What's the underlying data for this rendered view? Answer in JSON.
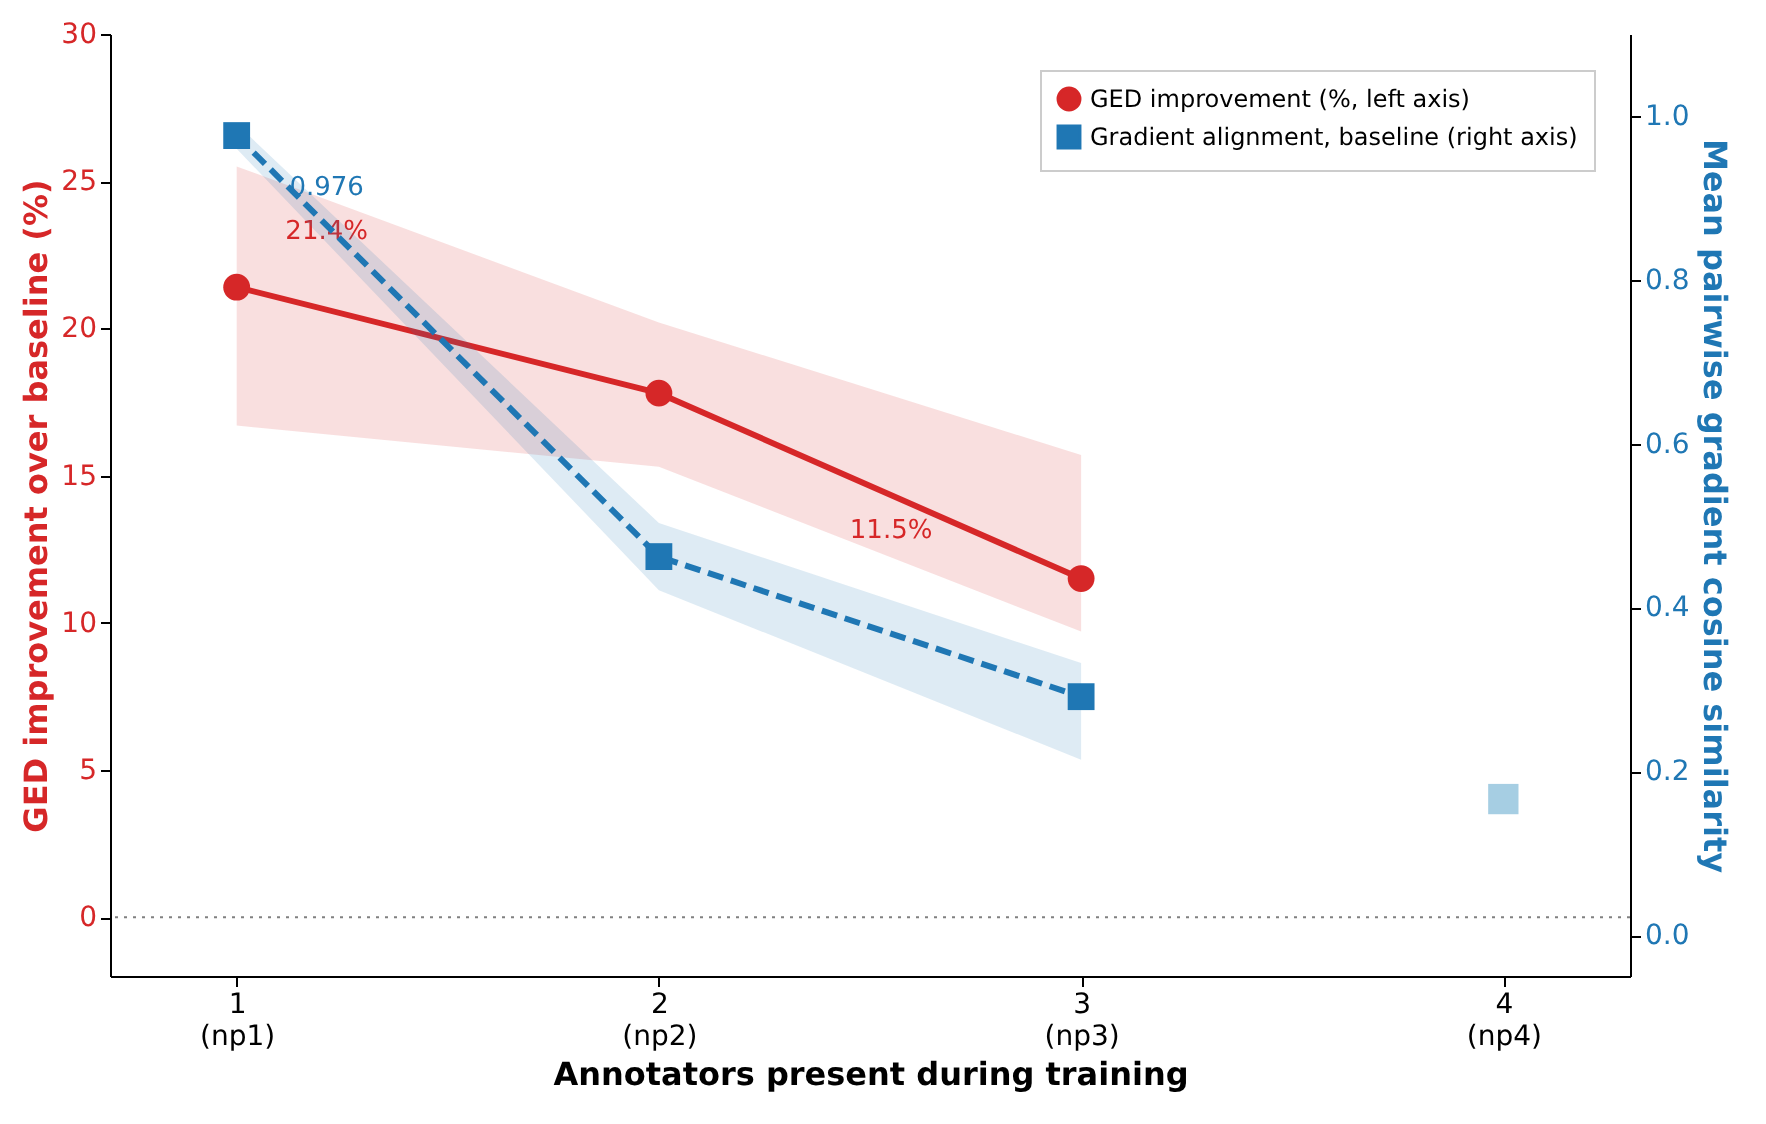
{
  "chart_data": {
    "type": "line",
    "xlabel": "Annotators present during training",
    "ylabel": "GED improvement over baseline (%)",
    "y2label": "Mean pairwise gradient cosine similarity",
    "categories": [
      "1\n(np1)",
      "2\n(np2)",
      "3\n(np3)",
      "4\n(np4)"
    ],
    "ylim": [
      -2,
      30
    ],
    "yticks": [
      0,
      5,
      10,
      15,
      20,
      25,
      30
    ],
    "y2lim": [
      -0.05,
      1.1
    ],
    "y2ticks": [
      {
        "value": 0,
        "label": "0.0"
      },
      0.2,
      0.4,
      0.6,
      0.8,
      {
        "value": 1,
        "label": "1.0"
      }
    ],
    "series": [
      {
        "name": "GED improvement (%, left axis)",
        "color": "#d62728",
        "values": [
          21.4,
          17.8,
          11.5,
          null
        ],
        "lower": [
          16.7,
          15.3,
          9.7,
          null
        ],
        "upper": [
          25.5,
          20.2,
          15.7,
          null
        ],
        "marker": "circle",
        "line_style": "solid"
      },
      {
        "name": "Gradient alignment, baseline (right axis)",
        "color": "#1f77b4",
        "axis": "y2",
        "values": [
          0.976,
          0.462,
          0.291,
          null
        ],
        "lower": [
          0.96,
          0.421,
          0.214,
          null
        ],
        "upper": [
          0.99,
          0.503,
          0.332,
          null
        ],
        "marker": "square",
        "line_style": "dashed"
      },
      {
        "type": "scatter",
        "color": "#a6cee3",
        "axis": "y2",
        "values": [
          null,
          null,
          null,
          0.166
        ],
        "marker": "square"
      }
    ],
    "annotations": [
      {
        "text": "0.976",
        "x": "1\n(np1)",
        "y": 24.8
      },
      {
        "text": "21.4%",
        "x": "1\n(np1)",
        "y": 23.3
      },
      "11.5%"
    ],
    "ref_lines": [
      {
        "axis": "y",
        "value": 0,
        "color": "#808080",
        "line_style": "dotted"
      }
    ],
    "grid": false,
    "legend": "top right"
  }
}
